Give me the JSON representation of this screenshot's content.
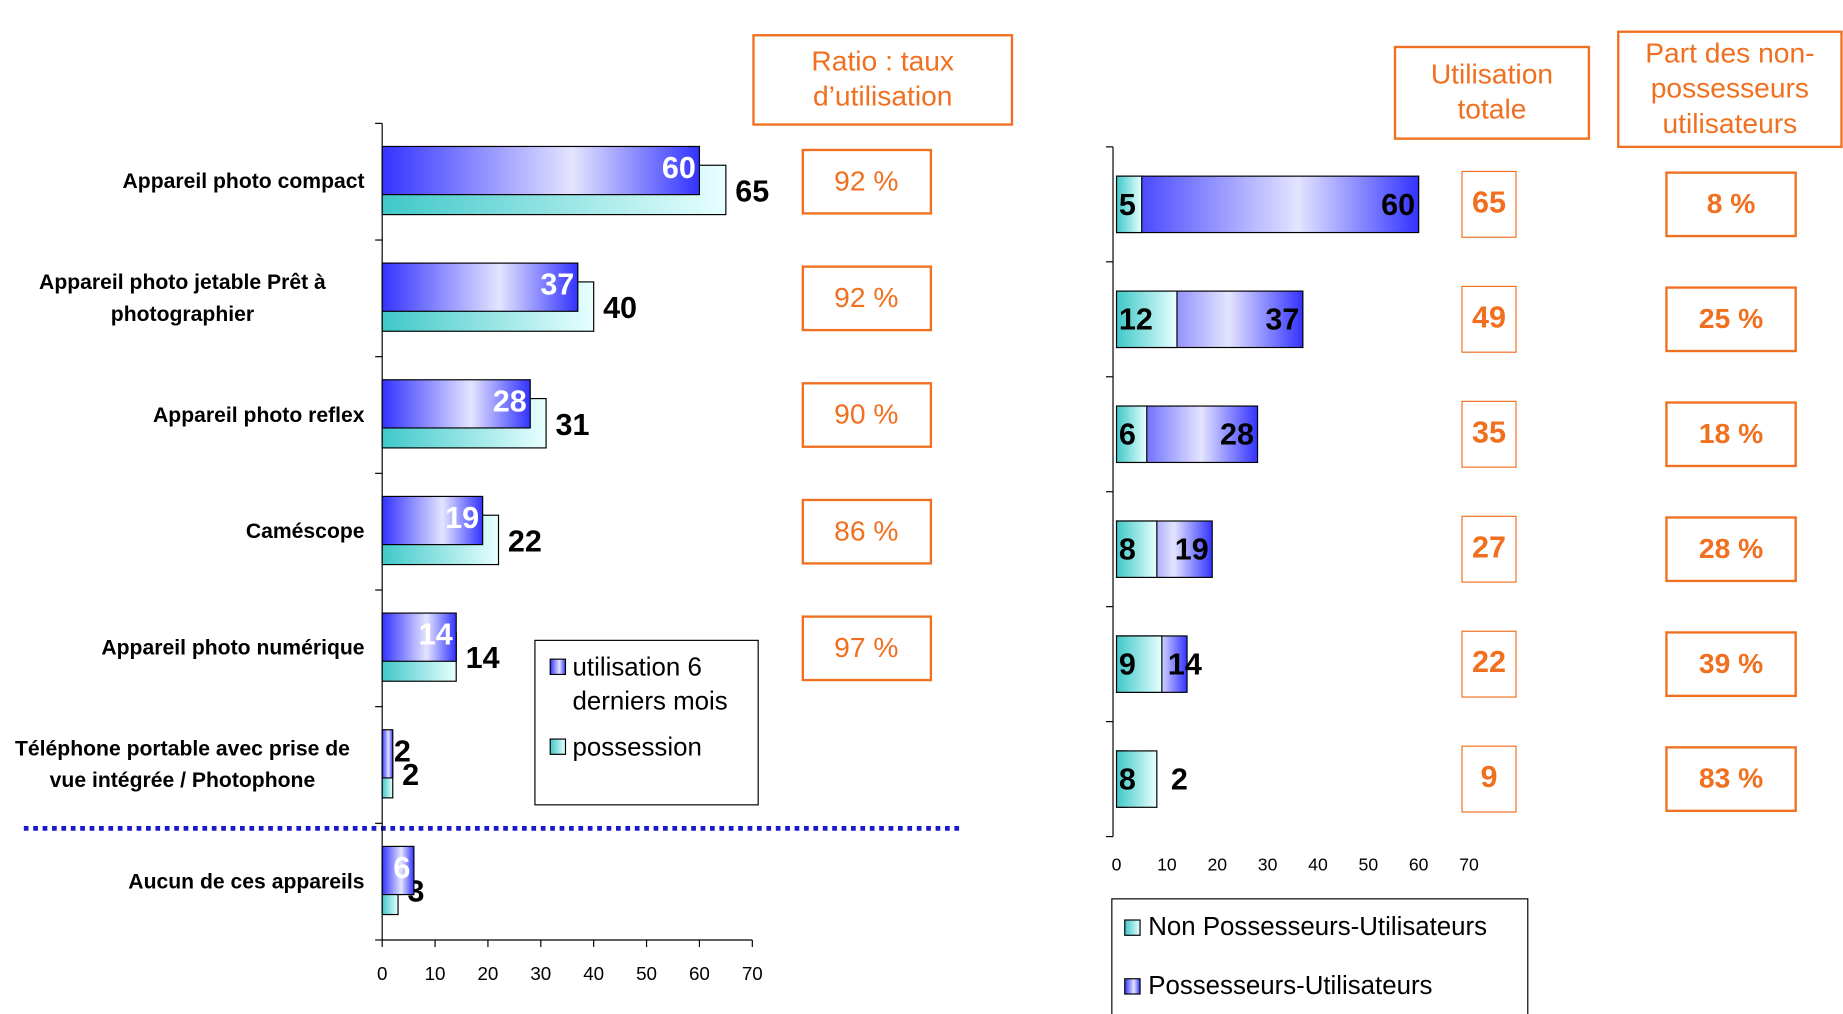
{
  "chart_data": [
    {
      "type": "bar",
      "categories": [
        "Appareil photo compact",
        "Appareil photo jetable Prêt à photographier",
        "Appareil photo reflex",
        "Caméscope",
        "Appareil photo numérique",
        "Téléphone portable avec prise de vue intégrée / Photophone",
        "Aucun de ces appareils"
      ],
      "series": [
        {
          "name": "utilisation 6 derniers mois",
          "color": "#3333ff",
          "values": [
            60,
            37,
            28,
            19,
            14,
            2,
            6
          ]
        },
        {
          "name": "possession",
          "color": "#40c8c8",
          "values": [
            65,
            40,
            31,
            22,
            14,
            2,
            3
          ]
        }
      ],
      "xlim": [
        0,
        70
      ],
      "xticks": [
        0,
        10,
        20,
        30,
        40,
        50,
        60,
        70
      ],
      "ratio_title": "Ratio : taux d’utilisation",
      "ratios": [
        "92 %",
        "92 %",
        "90 %",
        "86 %",
        "97 %"
      ]
    },
    {
      "type": "overlay-bar",
      "series": [
        {
          "name": "Non Possesseurs-Utilisateurs",
          "color": "#40c8c8",
          "values": [
            5,
            12,
            6,
            8,
            9,
            8
          ]
        },
        {
          "name": "Possesseurs-Utilisateurs",
          "color": "#3333ff",
          "values": [
            60,
            37,
            28,
            19,
            14,
            2
          ]
        }
      ],
      "xlim": [
        0,
        70
      ],
      "xticks": [
        0,
        10,
        20,
        30,
        40,
        50,
        60,
        70
      ],
      "total_title": "Utilisation totale",
      "totals": [
        65,
        49,
        35,
        27,
        22,
        9
      ],
      "share_title": "Part des non-possesseurs utilisateurs",
      "shares": [
        "8 %",
        "25 %",
        "18 %",
        "28 %",
        "39 %",
        "83 %"
      ]
    }
  ]
}
